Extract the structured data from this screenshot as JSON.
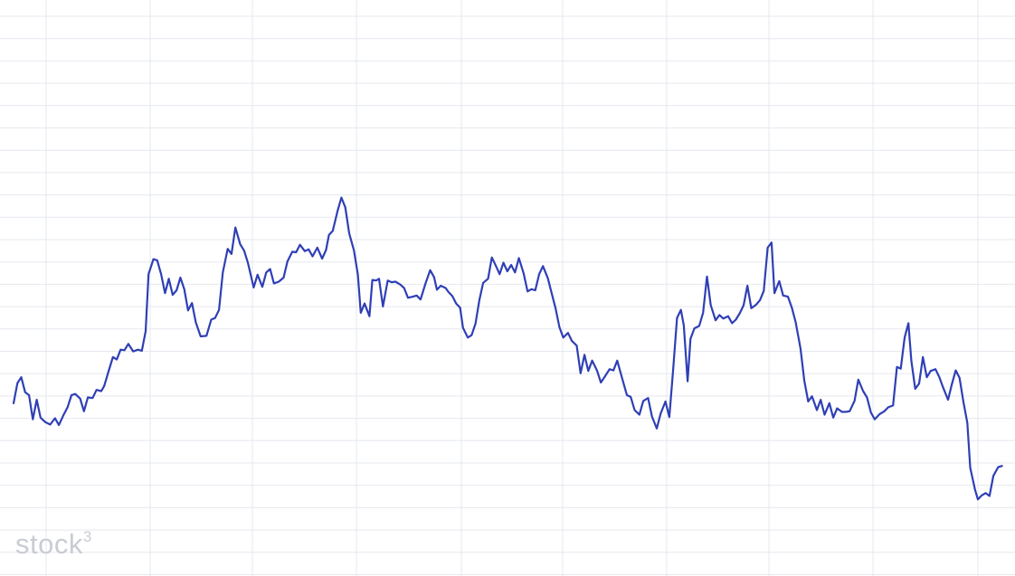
{
  "watermark": {
    "text": "stock",
    "superscript": "3"
  },
  "colors": {
    "line": "#2f3fb5",
    "grid": "#e6e8ef",
    "watermark": "#c9ccd3",
    "background": "#ffffff"
  },
  "chart_data": {
    "type": "line",
    "title": "",
    "xlabel": "",
    "ylabel": "",
    "grid": true,
    "legend": "none",
    "x_range": [
      0,
      100
    ],
    "y_range": [
      0,
      100
    ],
    "series": [
      {
        "values": [
          [
            0.0,
            30.0
          ],
          [
            0.4,
            33.5
          ],
          [
            0.8,
            34.5
          ],
          [
            1.2,
            31.9
          ],
          [
            1.6,
            31.4
          ],
          [
            2.0,
            27.2
          ],
          [
            2.4,
            30.6
          ],
          [
            2.8,
            27.5
          ],
          [
            3.3,
            26.7
          ],
          [
            3.8,
            26.3
          ],
          [
            4.3,
            27.4
          ],
          [
            4.7,
            26.2
          ],
          [
            5.2,
            28.0
          ],
          [
            5.6,
            29.3
          ],
          [
            6.0,
            31.4
          ],
          [
            6.4,
            31.6
          ],
          [
            6.9,
            30.8
          ],
          [
            7.3,
            28.6
          ],
          [
            7.7,
            31.0
          ],
          [
            8.2,
            30.9
          ],
          [
            8.6,
            32.3
          ],
          [
            9.1,
            32.1
          ],
          [
            9.4,
            33.0
          ],
          [
            9.9,
            35.8
          ],
          [
            10.3,
            38.0
          ],
          [
            10.7,
            37.6
          ],
          [
            11.1,
            39.3
          ],
          [
            11.5,
            39.2
          ],
          [
            11.9,
            40.3
          ],
          [
            12.4,
            39.0
          ],
          [
            12.9,
            39.3
          ],
          [
            13.3,
            39.1
          ],
          [
            13.7,
            42.5
          ],
          [
            14.0,
            52.4
          ],
          [
            14.5,
            55.0
          ],
          [
            14.9,
            54.8
          ],
          [
            15.3,
            52.4
          ],
          [
            15.7,
            49.1
          ],
          [
            16.1,
            51.6
          ],
          [
            16.5,
            48.8
          ],
          [
            16.9,
            49.6
          ],
          [
            17.3,
            51.8
          ],
          [
            17.7,
            49.8
          ],
          [
            18.1,
            46.1
          ],
          [
            18.5,
            47.4
          ],
          [
            18.9,
            44.0
          ],
          [
            19.4,
            41.6
          ],
          [
            20.0,
            41.7
          ],
          [
            20.5,
            44.5
          ],
          [
            20.9,
            44.8
          ],
          [
            21.3,
            46.2
          ],
          [
            21.7,
            52.7
          ],
          [
            22.2,
            56.8
          ],
          [
            22.6,
            55.9
          ],
          [
            23.0,
            60.5
          ],
          [
            23.5,
            57.6
          ],
          [
            23.9,
            56.5
          ],
          [
            24.3,
            54.4
          ],
          [
            24.7,
            51.5
          ],
          [
            24.9,
            50.1
          ],
          [
            25.3,
            52.3
          ],
          [
            25.8,
            50.2
          ],
          [
            26.2,
            52.7
          ],
          [
            26.6,
            53.3
          ],
          [
            27.0,
            50.8
          ],
          [
            27.5,
            51.1
          ],
          [
            28.0,
            51.8
          ],
          [
            28.4,
            54.6
          ],
          [
            28.9,
            56.3
          ],
          [
            29.3,
            56.2
          ],
          [
            29.7,
            57.5
          ],
          [
            30.2,
            56.4
          ],
          [
            30.6,
            56.7
          ],
          [
            31.0,
            55.5
          ],
          [
            31.5,
            57.0
          ],
          [
            32.0,
            55.1
          ],
          [
            32.4,
            56.6
          ],
          [
            32.7,
            59.2
          ],
          [
            33.1,
            59.9
          ],
          [
            33.6,
            63.4
          ],
          [
            34.0,
            65.7
          ],
          [
            34.4,
            64.0
          ],
          [
            34.8,
            59.5
          ],
          [
            35.3,
            56.5
          ],
          [
            35.7,
            52.3
          ],
          [
            36.0,
            45.7
          ],
          [
            36.4,
            47.3
          ],
          [
            36.9,
            45.1
          ],
          [
            37.2,
            51.4
          ],
          [
            37.6,
            51.3
          ],
          [
            37.9,
            51.6
          ],
          [
            38.3,
            46.8
          ],
          [
            38.8,
            51.3
          ],
          [
            39.2,
            51.0
          ],
          [
            39.6,
            51.1
          ],
          [
            40.1,
            50.6
          ],
          [
            40.5,
            50.0
          ],
          [
            40.9,
            48.3
          ],
          [
            41.4,
            48.5
          ],
          [
            41.8,
            48.7
          ],
          [
            42.2,
            48.0
          ],
          [
            42.7,
            50.7
          ],
          [
            43.2,
            53.1
          ],
          [
            43.6,
            51.9
          ],
          [
            43.9,
            49.7
          ],
          [
            44.3,
            50.4
          ],
          [
            44.8,
            50.0
          ],
          [
            45.1,
            49.3
          ],
          [
            45.5,
            48.6
          ],
          [
            45.9,
            47.3
          ],
          [
            46.3,
            46.6
          ],
          [
            46.6,
            43.1
          ],
          [
            47.1,
            41.4
          ],
          [
            47.5,
            41.8
          ],
          [
            47.9,
            43.8
          ],
          [
            48.3,
            47.9
          ],
          [
            48.7,
            50.9
          ],
          [
            49.2,
            51.6
          ],
          [
            49.6,
            55.3
          ],
          [
            50.0,
            53.9
          ],
          [
            50.4,
            52.4
          ],
          [
            50.8,
            54.4
          ],
          [
            51.2,
            52.9
          ],
          [
            51.6,
            54.0
          ],
          [
            52.0,
            52.7
          ],
          [
            52.4,
            55.2
          ],
          [
            52.9,
            52.5
          ],
          [
            53.3,
            49.4
          ],
          [
            53.7,
            49.8
          ],
          [
            54.1,
            49.6
          ],
          [
            54.5,
            52.4
          ],
          [
            54.9,
            53.8
          ],
          [
            55.4,
            51.7
          ],
          [
            55.8,
            49.1
          ],
          [
            56.2,
            46.5
          ],
          [
            56.6,
            43.2
          ],
          [
            57.0,
            41.4
          ],
          [
            57.5,
            42.2
          ],
          [
            57.9,
            40.8
          ],
          [
            58.4,
            40.0
          ],
          [
            58.8,
            35.2
          ],
          [
            59.2,
            38.4
          ],
          [
            59.6,
            35.6
          ],
          [
            60.0,
            37.4
          ],
          [
            60.5,
            35.7
          ],
          [
            60.9,
            33.6
          ],
          [
            61.3,
            34.6
          ],
          [
            61.8,
            35.9
          ],
          [
            62.2,
            35.7
          ],
          [
            62.6,
            37.4
          ],
          [
            63.1,
            34.4
          ],
          [
            63.6,
            31.4
          ],
          [
            64.0,
            31.1
          ],
          [
            64.4,
            28.8
          ],
          [
            64.9,
            28.0
          ],
          [
            65.3,
            30.4
          ],
          [
            65.8,
            30.9
          ],
          [
            66.2,
            27.7
          ],
          [
            66.7,
            25.6
          ],
          [
            67.1,
            28.2
          ],
          [
            67.6,
            30.3
          ],
          [
            68.0,
            27.6
          ],
          [
            68.4,
            35.8
          ],
          [
            68.8,
            44.8
          ],
          [
            69.2,
            46.2
          ],
          [
            69.5,
            43.5
          ],
          [
            69.9,
            33.8
          ],
          [
            70.2,
            41.2
          ],
          [
            70.6,
            43.0
          ],
          [
            71.1,
            43.4
          ],
          [
            71.5,
            45.7
          ],
          [
            71.9,
            52.0
          ],
          [
            72.3,
            47.0
          ],
          [
            72.8,
            44.4
          ],
          [
            73.2,
            45.3
          ],
          [
            73.6,
            44.7
          ],
          [
            74.1,
            45.1
          ],
          [
            74.5,
            43.9
          ],
          [
            74.9,
            44.5
          ],
          [
            75.3,
            45.6
          ],
          [
            75.7,
            47.0
          ],
          [
            76.1,
            50.4
          ],
          [
            76.5,
            46.5
          ],
          [
            77.0,
            47.1
          ],
          [
            77.4,
            47.9
          ],
          [
            77.8,
            49.5
          ],
          [
            78.2,
            57.0
          ],
          [
            78.6,
            57.9
          ],
          [
            78.9,
            49.1
          ],
          [
            79.4,
            51.2
          ],
          [
            79.8,
            48.7
          ],
          [
            80.3,
            48.5
          ],
          [
            80.7,
            46.6
          ],
          [
            81.1,
            44.1
          ],
          [
            81.6,
            39.5
          ],
          [
            82.0,
            33.9
          ],
          [
            82.4,
            30.3
          ],
          [
            82.8,
            31.2
          ],
          [
            83.3,
            28.8
          ],
          [
            83.7,
            30.6
          ],
          [
            84.1,
            28.0
          ],
          [
            84.6,
            30.0
          ],
          [
            85.0,
            27.5
          ],
          [
            85.4,
            29.1
          ],
          [
            85.9,
            28.5
          ],
          [
            86.3,
            28.5
          ],
          [
            86.7,
            28.6
          ],
          [
            87.2,
            30.4
          ],
          [
            87.6,
            34.1
          ],
          [
            88.1,
            32.1
          ],
          [
            88.5,
            31.0
          ],
          [
            88.9,
            28.4
          ],
          [
            89.3,
            27.2
          ],
          [
            89.8,
            28.1
          ],
          [
            90.3,
            28.6
          ],
          [
            90.7,
            29.3
          ],
          [
            91.2,
            29.6
          ],
          [
            91.6,
            36.3
          ],
          [
            92.0,
            36.0
          ],
          [
            92.4,
            41.4
          ],
          [
            92.8,
            43.9
          ],
          [
            93.1,
            37.4
          ],
          [
            93.5,
            32.5
          ],
          [
            93.9,
            33.4
          ],
          [
            94.3,
            38.0
          ],
          [
            94.7,
            34.5
          ],
          [
            95.1,
            35.6
          ],
          [
            95.6,
            35.9
          ],
          [
            96.0,
            34.5
          ],
          [
            96.4,
            32.7
          ],
          [
            96.9,
            30.6
          ],
          [
            97.3,
            33.3
          ],
          [
            97.7,
            35.7
          ],
          [
            98.1,
            34.4
          ],
          [
            98.5,
            30.2
          ],
          [
            98.9,
            26.6
          ],
          [
            99.2,
            18.8
          ],
          [
            99.7,
            15.0
          ],
          [
            100.0,
            13.3
          ],
          [
            100.4,
            14.0
          ],
          [
            100.8,
            14.4
          ],
          [
            101.2,
            13.9
          ],
          [
            101.6,
            17.4
          ],
          [
            102.1,
            18.9
          ],
          [
            102.5,
            19.1
          ]
        ]
      }
    ]
  }
}
